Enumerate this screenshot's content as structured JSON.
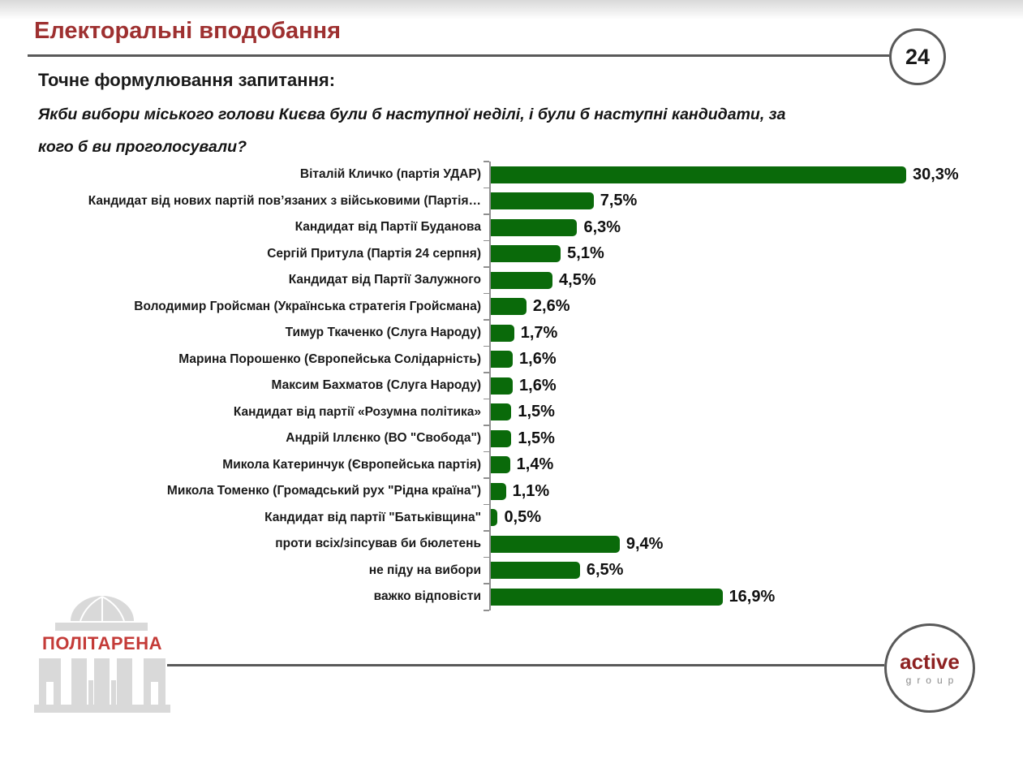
{
  "page": {
    "title": "Електоральні вподобання",
    "page_number": "24",
    "question_label": "Точне формулювання запитання:",
    "question_line1": "Якби вибори міського голови Києва були б наступної неділі, і були б наступні кандидати, за",
    "question_line2": "кого б ви проголосували?"
  },
  "chart_data": {
    "type": "bar",
    "orientation": "horizontal",
    "unit": "%",
    "xlim": [
      0,
      31.5
    ],
    "grid": false,
    "legend": false,
    "categories": [
      "Віталій Кличко (партія УДАР)",
      "Кандидат від нових партій пов’язаних з військовими (Партія…",
      "Кандидат від Партії Буданова",
      "Сергій Притула (Партія 24 серпня)",
      "Кандидат від Партії Залужного",
      "Володимир Гройсман (Українська стратегія Гройсмана)",
      "Тимур Ткаченко (Слуга Народу)",
      "Марина Порошенко (Європейська Солідарність)",
      "Максим Бахматов (Слуга Народу)",
      "Кандидат від партії «Розумна політика»",
      "Андрій Іллєнко (ВО \"Свобода\")",
      "Микола Катеринчук (Європейська партія)",
      "Микола Томенко (Громадський рух \"Рідна країна\")",
      "Кандидат від партії \"Батьківщина\"",
      "проти всіх/зіпсував би бюлетень",
      "не піду на вибори",
      "важко відповісти"
    ],
    "values": [
      30.3,
      7.5,
      6.3,
      5.1,
      4.5,
      2.6,
      1.7,
      1.6,
      1.6,
      1.5,
      1.5,
      1.4,
      1.1,
      0.5,
      9.4,
      6.5,
      16.9
    ],
    "value_labels": [
      "30,3%",
      "7,5%",
      "6,3%",
      "5,1%",
      "4,5%",
      "2,6%",
      "1,7%",
      "1,6%",
      "1,6%",
      "1,5%",
      "1,5%",
      "1,4%",
      "1,1%",
      "0,5%",
      "9,4%",
      "6,5%",
      "16,9%"
    ]
  },
  "footer": {
    "left_logo_text": "ПОЛІТАРЕНА",
    "right_logo_word1": "active",
    "right_logo_word2": "group"
  },
  "colors": {
    "bar_green": "#0A6A0A",
    "title_red": "#9E3030",
    "logo_red": "#C43B38",
    "active_red": "#8E2222",
    "line_gray": "#595959"
  }
}
